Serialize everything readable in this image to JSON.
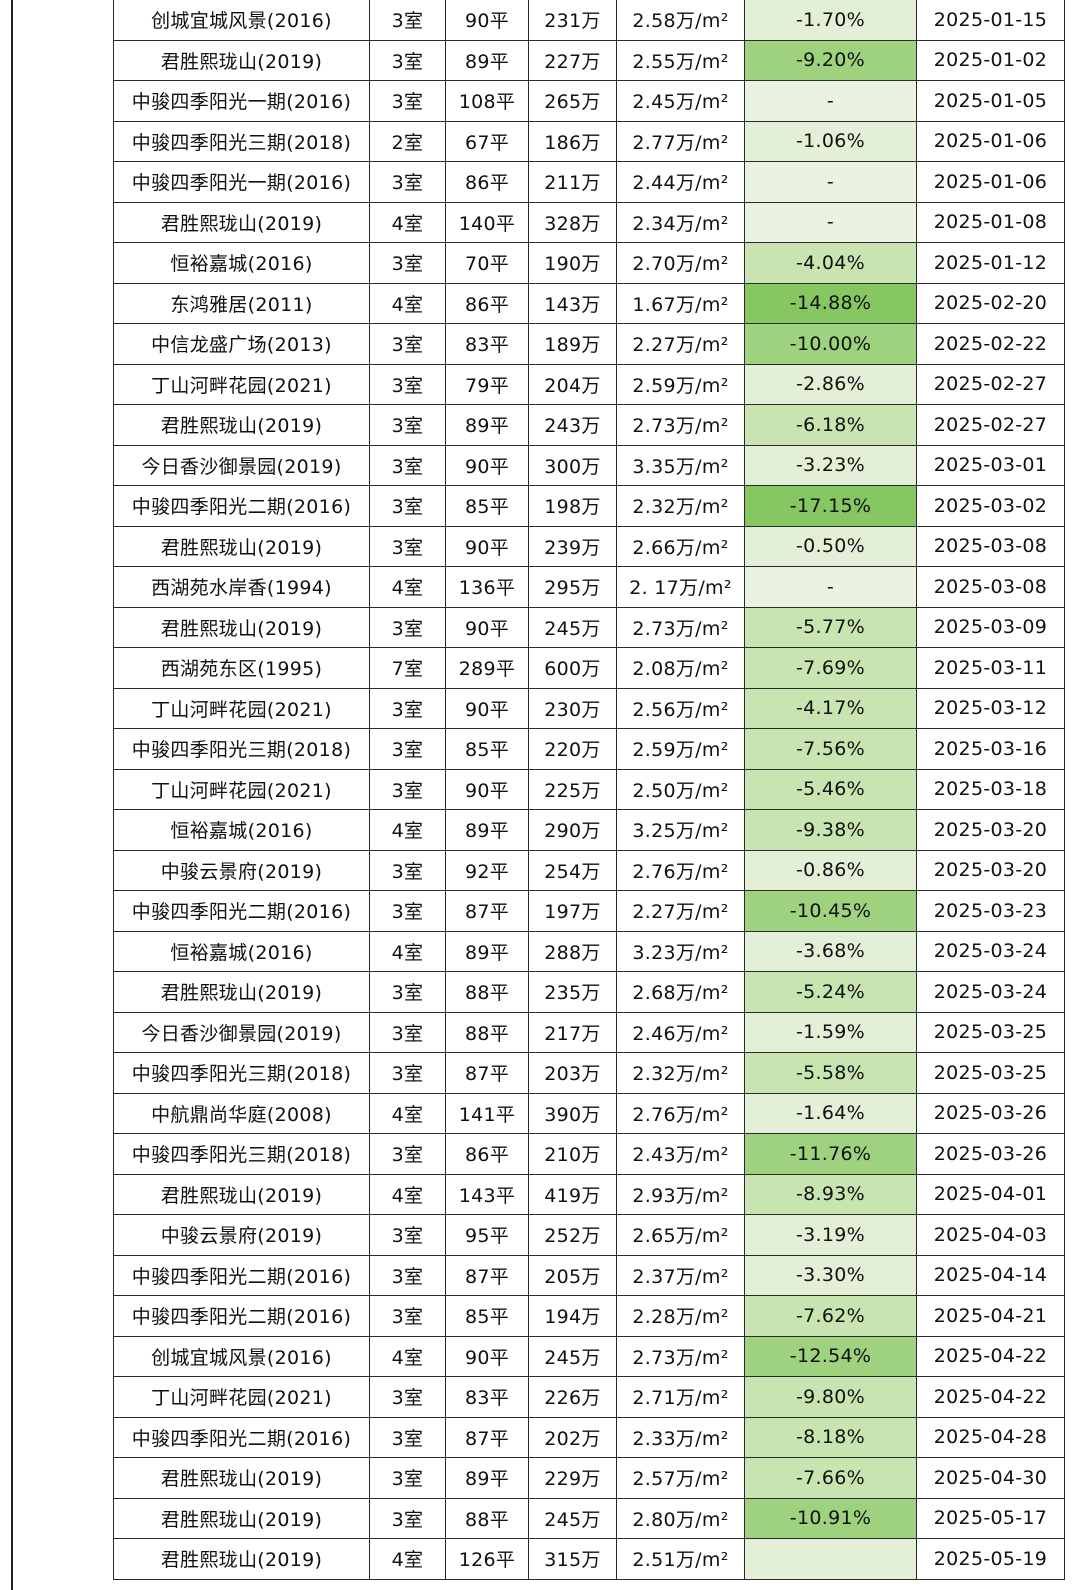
{
  "unit_suffix": "万/m²",
  "change_colors": {
    "none": "#eaf3e1",
    "light": "#e3f0d7",
    "mid": "#c8e4b0",
    "strong": "#9fd27f",
    "dark": "#86c762"
  },
  "rows": [
    {
      "name": "创城宜城风景(2016)",
      "rooms": "3室",
      "area": "90平",
      "price": "231万",
      "unit_price": "2.58万/m²",
      "change": "-1.70%",
      "date": "2025-01-15",
      "tone": "light"
    },
    {
      "name": "君胜熙珑山(2019)",
      "rooms": "3室",
      "area": "89平",
      "price": "227万",
      "unit_price": "2.55万/m²",
      "change": "-9.20%",
      "date": "2025-01-02",
      "tone": "strong"
    },
    {
      "name": "中骏四季阳光一期(2016)",
      "rooms": "3室",
      "area": "108平",
      "price": "265万",
      "unit_price": "2.45万/m²",
      "change": "-",
      "date": "2025-01-05",
      "tone": "none"
    },
    {
      "name": "中骏四季阳光三期(2018)",
      "rooms": "2室",
      "area": "67平",
      "price": "186万",
      "unit_price": "2.77万/m²",
      "change": "-1.06%",
      "date": "2025-01-06",
      "tone": "light"
    },
    {
      "name": "中骏四季阳光一期(2016)",
      "rooms": "3室",
      "area": "86平",
      "price": "211万",
      "unit_price": "2.44万/m²",
      "change": "-",
      "date": "2025-01-06",
      "tone": "none"
    },
    {
      "name": "君胜熙珑山(2019)",
      "rooms": "4室",
      "area": "140平",
      "price": "328万",
      "unit_price": "2.34万/m²",
      "change": "-",
      "date": "2025-01-08",
      "tone": "none"
    },
    {
      "name": "恒裕嘉城(2016)",
      "rooms": "3室",
      "area": "70平",
      "price": "190万",
      "unit_price": "2.70万/m²",
      "change": "-4.04%",
      "date": "2025-01-12",
      "tone": "mid"
    },
    {
      "name": "东鸿雅居(2011)",
      "rooms": "4室",
      "area": "86平",
      "price": "143万",
      "unit_price": "1.67万/m²",
      "change": "-14.88%",
      "date": "2025-02-20",
      "tone": "dark"
    },
    {
      "name": "中信龙盛广场(2013)",
      "rooms": "3室",
      "area": "83平",
      "price": "189万",
      "unit_price": "2.27万/m²",
      "change": "-10.00%",
      "date": "2025-02-22",
      "tone": "strong"
    },
    {
      "name": "丁山河畔花园(2021)",
      "rooms": "3室",
      "area": "79平",
      "price": "204万",
      "unit_price": "2.59万/m²",
      "change": "-2.86%",
      "date": "2025-02-27",
      "tone": "light"
    },
    {
      "name": "君胜熙珑山(2019)",
      "rooms": "3室",
      "area": "89平",
      "price": "243万",
      "unit_price": "2.73万/m²",
      "change": "-6.18%",
      "date": "2025-02-27",
      "tone": "mid"
    },
    {
      "name": "今日香沙御景园(2019)",
      "rooms": "3室",
      "area": "90平",
      "price": "300万",
      "unit_price": "3.35万/m²",
      "change": "-3.23%",
      "date": "2025-03-01",
      "tone": "light"
    },
    {
      "name": "中骏四季阳光二期(2016)",
      "rooms": "3室",
      "area": "85平",
      "price": "198万",
      "unit_price": "2.32万/m²",
      "change": "-17.15%",
      "date": "2025-03-02",
      "tone": "dark"
    },
    {
      "name": "君胜熙珑山(2019)",
      "rooms": "3室",
      "area": "90平",
      "price": "239万",
      "unit_price": "2.66万/m²",
      "change": "-0.50%",
      "date": "2025-03-08",
      "tone": "light"
    },
    {
      "name": "西湖苑水岸香(1994)",
      "rooms": "4室",
      "area": "136平",
      "price": "295万",
      "unit_price": "2. 17万/m²",
      "change": "-",
      "date": "2025-03-08",
      "tone": "none"
    },
    {
      "name": "君胜熙珑山(2019)",
      "rooms": "3室",
      "area": "90平",
      "price": "245万",
      "unit_price": "2.73万/m²",
      "change": "-5.77%",
      "date": "2025-03-09",
      "tone": "mid"
    },
    {
      "name": "西湖苑东区(1995)",
      "rooms": "7室",
      "area": "289平",
      "price": "600万",
      "unit_price": "2.08万/m²",
      "change": "-7.69%",
      "date": "2025-03-11",
      "tone": "mid"
    },
    {
      "name": "丁山河畔花园(2021)",
      "rooms": "3室",
      "area": "90平",
      "price": "230万",
      "unit_price": "2.56万/m²",
      "change": "-4.17%",
      "date": "2025-03-12",
      "tone": "mid"
    },
    {
      "name": "中骏四季阳光三期(2018)",
      "rooms": "3室",
      "area": "85平",
      "price": "220万",
      "unit_price": "2.59万/m²",
      "change": "-7.56%",
      "date": "2025-03-16",
      "tone": "mid"
    },
    {
      "name": "丁山河畔花园(2021)",
      "rooms": "3室",
      "area": "90平",
      "price": "225万",
      "unit_price": "2.50万/m²",
      "change": "-5.46%",
      "date": "2025-03-18",
      "tone": "mid"
    },
    {
      "name": "恒裕嘉城(2016)",
      "rooms": "4室",
      "area": "89平",
      "price": "290万",
      "unit_price": "3.25万/m²",
      "change": "-9.38%",
      "date": "2025-03-20",
      "tone": "mid"
    },
    {
      "name": "中骏云景府(2019)",
      "rooms": "3室",
      "area": "92平",
      "price": "254万",
      "unit_price": "2.76万/m²",
      "change": "-0.86%",
      "date": "2025-03-20",
      "tone": "light"
    },
    {
      "name": "中骏四季阳光二期(2016)",
      "rooms": "3室",
      "area": "87平",
      "price": "197万",
      "unit_price": "2.27万/m²",
      "change": "-10.45%",
      "date": "2025-03-23",
      "tone": "strong"
    },
    {
      "name": "恒裕嘉城(2016)",
      "rooms": "4室",
      "area": "89平",
      "price": "288万",
      "unit_price": "3.23万/m²",
      "change": "-3.68%",
      "date": "2025-03-24",
      "tone": "light"
    },
    {
      "name": "君胜熙珑山(2019)",
      "rooms": "3室",
      "area": "88平",
      "price": "235万",
      "unit_price": "2.68万/m²",
      "change": "-5.24%",
      "date": "2025-03-24",
      "tone": "mid"
    },
    {
      "name": "今日香沙御景园(2019)",
      "rooms": "3室",
      "area": "88平",
      "price": "217万",
      "unit_price": "2.46万/m²",
      "change": "-1.59%",
      "date": "2025-03-25",
      "tone": "light"
    },
    {
      "name": "中骏四季阳光三期(2018)",
      "rooms": "3室",
      "area": "87平",
      "price": "203万",
      "unit_price": "2.32万/m²",
      "change": "-5.58%",
      "date": "2025-03-25",
      "tone": "mid"
    },
    {
      "name": "中航鼎尚华庭(2008)",
      "rooms": "4室",
      "area": "141平",
      "price": "390万",
      "unit_price": "2.76万/m²",
      "change": "-1.64%",
      "date": "2025-03-26",
      "tone": "light"
    },
    {
      "name": "中骏四季阳光三期(2018)",
      "rooms": "3室",
      "area": "86平",
      "price": "210万",
      "unit_price": "2.43万/m²",
      "change": "-11.76%",
      "date": "2025-03-26",
      "tone": "strong"
    },
    {
      "name": "君胜熙珑山(2019)",
      "rooms": "4室",
      "area": "143平",
      "price": "419万",
      "unit_price": "2.93万/m²",
      "change": "-8.93%",
      "date": "2025-04-01",
      "tone": "mid"
    },
    {
      "name": "中骏云景府(2019)",
      "rooms": "3室",
      "area": "95平",
      "price": "252万",
      "unit_price": "2.65万/m²",
      "change": "-3.19%",
      "date": "2025-04-03",
      "tone": "light"
    },
    {
      "name": "中骏四季阳光二期(2016)",
      "rooms": "3室",
      "area": "87平",
      "price": "205万",
      "unit_price": "2.37万/m²",
      "change": "-3.30%",
      "date": "2025-04-14",
      "tone": "light"
    },
    {
      "name": "中骏四季阳光二期(2016)",
      "rooms": "3室",
      "area": "85平",
      "price": "194万",
      "unit_price": "2.28万/m²",
      "change": "-7.62%",
      "date": "2025-04-21",
      "tone": "mid"
    },
    {
      "name": "创城宜城风景(2016)",
      "rooms": "4室",
      "area": "90平",
      "price": "245万",
      "unit_price": "2.73万/m²",
      "change": "-12.54%",
      "date": "2025-04-22",
      "tone": "strong"
    },
    {
      "name": "丁山河畔花园(2021)",
      "rooms": "3室",
      "area": "83平",
      "price": "226万",
      "unit_price": "2.71万/m²",
      "change": "-9.80%",
      "date": "2025-04-22",
      "tone": "mid"
    },
    {
      "name": "中骏四季阳光二期(2016)",
      "rooms": "3室",
      "area": "87平",
      "price": "202万",
      "unit_price": "2.33万/m²",
      "change": "-8.18%",
      "date": "2025-04-28",
      "tone": "mid"
    },
    {
      "name": "君胜熙珑山(2019)",
      "rooms": "3室",
      "area": "89平",
      "price": "229万",
      "unit_price": "2.57万/m²",
      "change": "-7.66%",
      "date": "2025-04-30",
      "tone": "mid"
    },
    {
      "name": "君胜熙珑山(2019)",
      "rooms": "3室",
      "area": "88平",
      "price": "245万",
      "unit_price": "2.80万/m²",
      "change": "-10.91%",
      "date": "2025-05-17",
      "tone": "strong"
    },
    {
      "name": "君胜熙珑山(2019)",
      "rooms": "4室",
      "area": "126平",
      "price": "315万",
      "unit_price": "2.51万/m²",
      "change": "",
      "date": "2025-05-19",
      "tone": "light"
    }
  ]
}
